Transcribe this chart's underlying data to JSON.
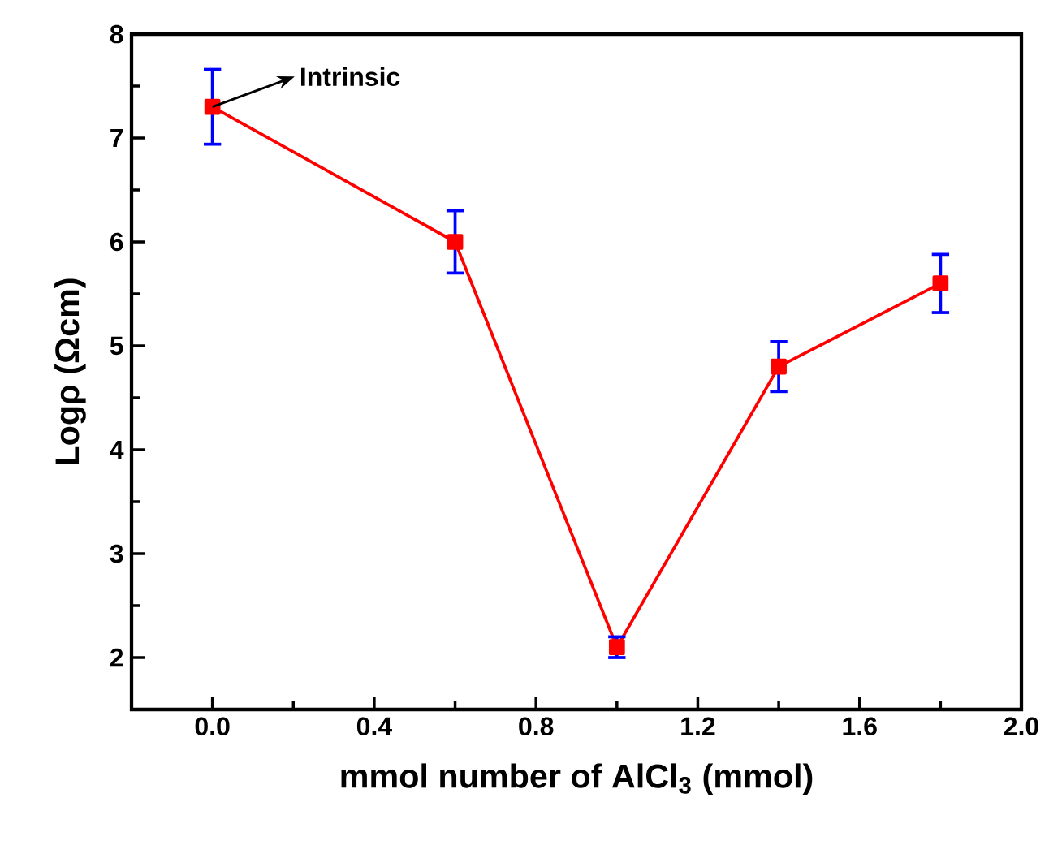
{
  "chart_data": {
    "type": "line",
    "xlabel": "mmol number of AlCl$_{3}$ (mmol)",
    "ylabel": "Logρ (Ωcm)",
    "x": [
      0.0,
      0.6,
      1.0,
      1.4,
      1.8
    ],
    "series": [
      {
        "color": "#ff0000",
        "values": [
          7.3,
          6.0,
          2.1,
          4.8,
          5.6
        ],
        "errors": [
          0.36,
          0.3,
          0.1,
          0.24,
          0.28
        ]
      }
    ],
    "marker": "square",
    "line_style": "solid",
    "xlim": [
      -0.2,
      2.0
    ],
    "ylim": [
      1.5,
      8
    ],
    "xticks": [
      {
        "value": 0.0,
        "label": "0.0"
      },
      {
        "value": 0.4,
        "label": "0.4"
      },
      {
        "value": 0.8,
        "label": "0.8"
      },
      {
        "value": 1.2,
        "label": "1.2"
      },
      {
        "value": 1.6,
        "label": "1.6"
      },
      {
        "value": 2.0,
        "label": "2.0"
      }
    ],
    "yticks": [
      2,
      3,
      4,
      5,
      6,
      7,
      8
    ],
    "annotations": [
      {
        "text": "Intrinsic",
        "x": 0.0,
        "y": 7.3
      }
    ]
  }
}
